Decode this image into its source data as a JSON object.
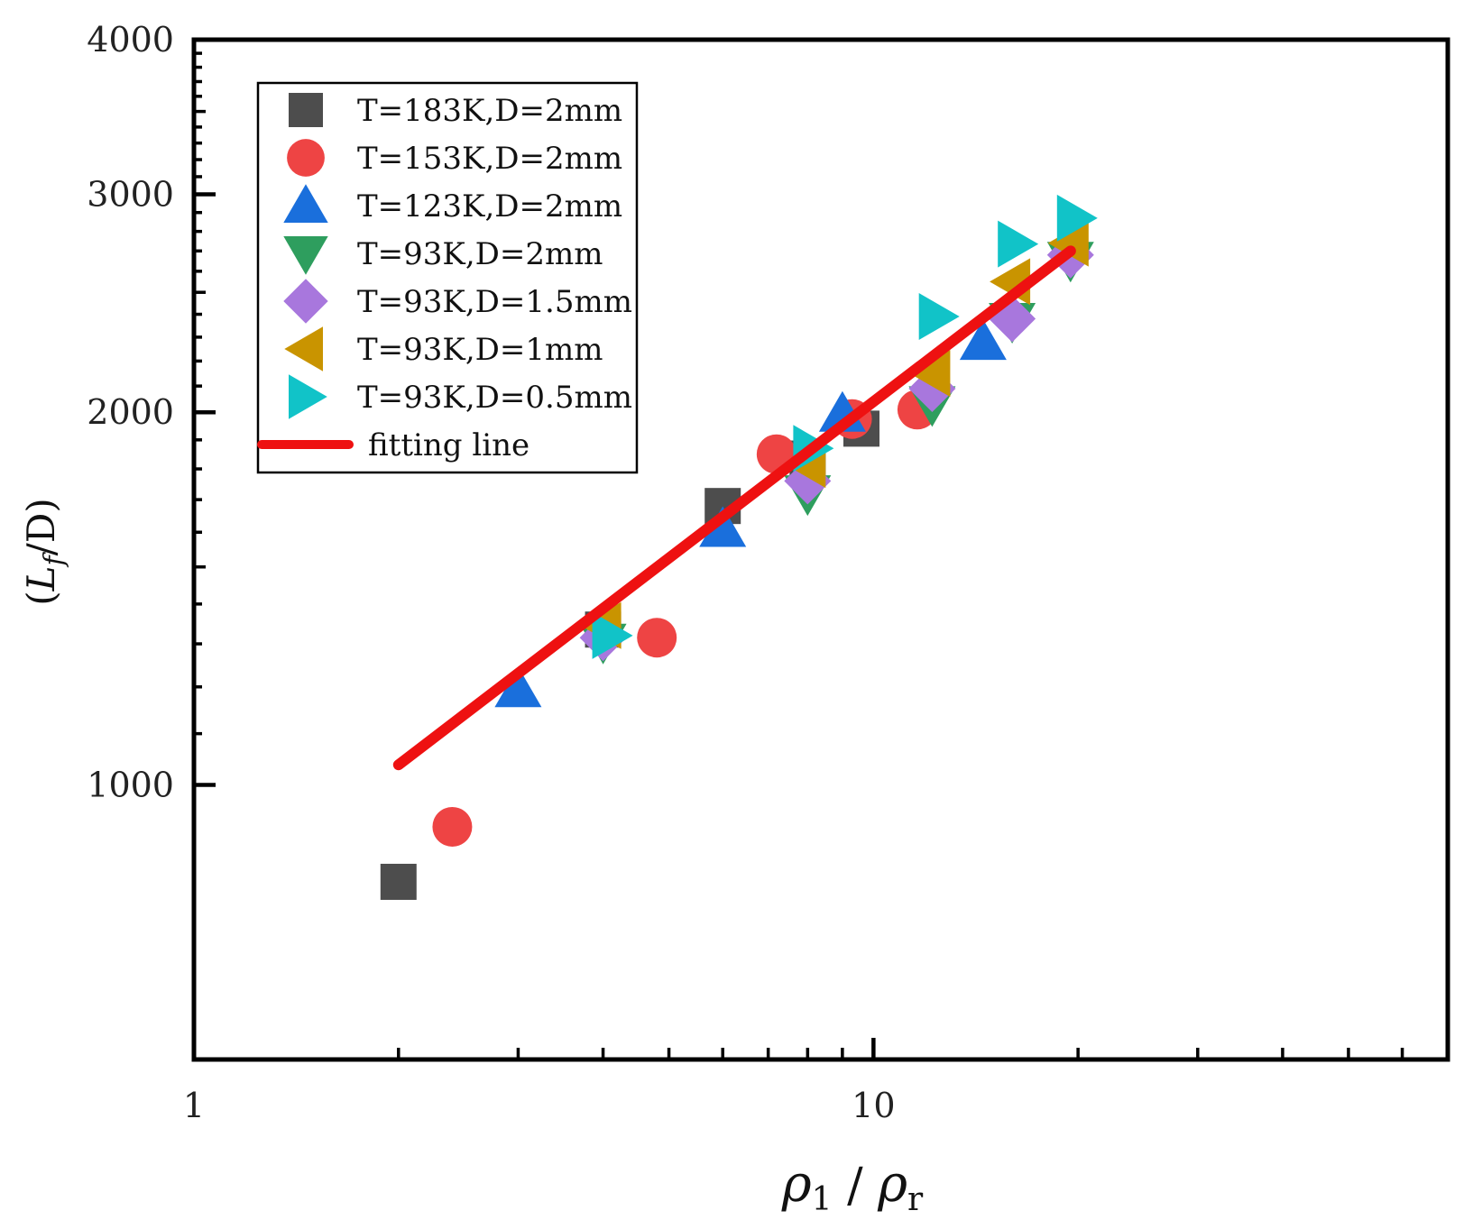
{
  "chart_data": {
    "type": "scatter",
    "x_scale": "log",
    "y_scale": "log",
    "xlim": [
      1,
      70
    ],
    "ylim": [
      600,
      4000
    ],
    "x_ticks": [
      1,
      10
    ],
    "x_tick_labels": [
      "1",
      "10"
    ],
    "y_ticks": [
      1000,
      2000,
      3000,
      4000
    ],
    "y_tick_labels": [
      "1000",
      "2000",
      "3000",
      "4000"
    ],
    "xlabel": {
      "rho1": "ρ",
      "sub1": "1",
      "slash": " / ",
      "rho2": "ρ",
      "sub2": "r"
    },
    "ylabel": {
      "open": "(",
      "L": "L",
      "sub": "f",
      "rest": "/D)"
    },
    "legend_position": "top-left",
    "series": [
      {
        "name": "T=183K,D=2mm",
        "marker": "square",
        "color": "#4d4d4d",
        "x": [
          2.0,
          4.0,
          6.0,
          8.0,
          9.6
        ],
        "y": [
          835,
          1335,
          1680,
          1835,
          1940
        ]
      },
      {
        "name": "T=153K,D=2mm",
        "marker": "circle",
        "color": "#ee4444",
        "x": [
          2.4,
          4.8,
          7.2,
          9.3,
          11.6
        ],
        "y": [
          925,
          1315,
          1850,
          1975,
          2010
        ]
      },
      {
        "name": "T=123K,D=2mm",
        "marker": "triangle-up",
        "color": "#1a6fdc",
        "x": [
          3.0,
          6.0,
          9.0,
          14.5
        ],
        "y": [
          1195,
          1610,
          1995,
          2280
        ]
      },
      {
        "name": "T=93K,D=2mm",
        "marker": "triangle-down",
        "color": "#2e9e5e",
        "x": [
          4.0,
          8.0,
          12.2,
          16.0,
          19.5
        ],
        "y": [
          1305,
          1720,
          2030,
          2370,
          2655
        ]
      },
      {
        "name": "T=93K,D=1.5mm",
        "marker": "diamond",
        "color": "#a877dd",
        "x": [
          4.0,
          8.0,
          12.2,
          16.0,
          19.5
        ],
        "y": [
          1315,
          1760,
          2090,
          2380,
          2680
        ]
      },
      {
        "name": "T=93K,D=1mm",
        "marker": "triangle-left",
        "color": "#c99400",
        "x": [
          4.0,
          8.0,
          12.2,
          16.0,
          19.5
        ],
        "y": [
          1345,
          1815,
          2150,
          2550,
          2740
        ]
      },
      {
        "name": "T=93K,D=0.5mm",
        "marker": "triangle-right",
        "color": "#11c3c8",
        "x": [
          4.1,
          8.1,
          12.4,
          16.2,
          19.8
        ],
        "y": [
          1320,
          1870,
          2390,
          2735,
          2870
        ]
      }
    ],
    "fit_line": {
      "name": "fitting line",
      "color": "#ee1111",
      "x": [
        2.0,
        19.5
      ],
      "y": [
        1038,
        2700
      ]
    }
  }
}
